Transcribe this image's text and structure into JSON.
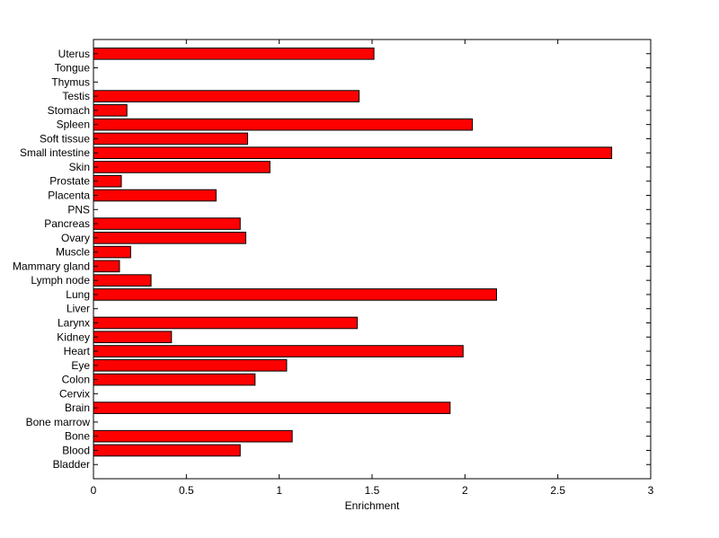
{
  "chart_data": {
    "type": "bar",
    "orientation": "horizontal",
    "title": "",
    "xlabel": "Enrichment",
    "ylabel": "",
    "xlim": [
      0,
      3
    ],
    "xticks": [
      "0",
      "0.5",
      "1",
      "1.5",
      "2",
      "2.5",
      "3"
    ],
    "grid": false,
    "bar_color": "#ff0000",
    "bar_edge_color": "#000000",
    "categories": [
      "Bladder",
      "Blood",
      "Bone",
      "Bone marrow",
      "Brain",
      "Cervix",
      "Colon",
      "Eye",
      "Heart",
      "Kidney",
      "Larynx",
      "Liver",
      "Lung",
      "Lymph node",
      "Mammary gland",
      "Muscle",
      "Ovary",
      "Pancreas",
      "PNS",
      "Placenta",
      "Prostate",
      "Skin",
      "Small intestine",
      "Soft tissue",
      "Spleen",
      "Stomach",
      "Testis",
      "Thymus",
      "Tongue",
      "Uterus"
    ],
    "values": [
      0,
      0.79,
      1.07,
      0,
      1.92,
      0,
      0.87,
      1.04,
      1.99,
      0.42,
      1.42,
      0,
      2.17,
      0.31,
      0.14,
      0.2,
      0.82,
      0.79,
      0,
      0.66,
      0.15,
      0.95,
      2.79,
      0.83,
      2.04,
      0.18,
      1.43,
      0,
      0,
      1.51
    ]
  }
}
